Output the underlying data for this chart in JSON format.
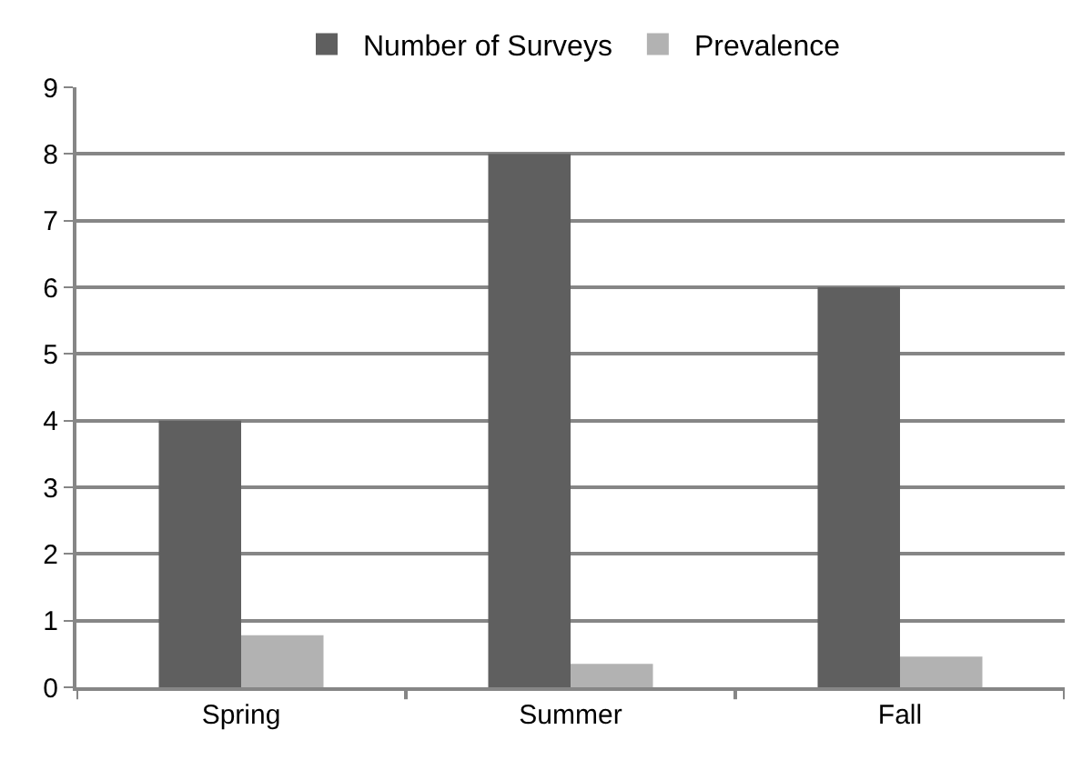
{
  "chart_data": {
    "type": "bar",
    "categories": [
      "Spring",
      "Summer",
      "Fall"
    ],
    "series": [
      {
        "name": "Number of Surveys",
        "color": "#5f5f5f",
        "values": [
          4,
          8,
          6
        ]
      },
      {
        "name": "Prevalence",
        "color": "#b2b2b2",
        "values": [
          0.78,
          0.35,
          0.46
        ]
      }
    ],
    "ylim": [
      0,
      9
    ],
    "yticks": [
      0,
      1,
      2,
      3,
      4,
      5,
      6,
      7,
      8,
      9
    ],
    "grid": "y",
    "legend": "top"
  }
}
